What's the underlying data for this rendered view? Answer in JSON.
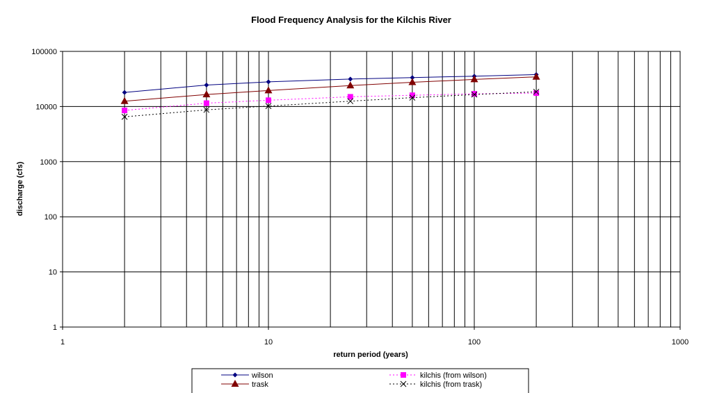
{
  "chart_data": {
    "type": "line",
    "title": "Flood Frequency Analysis for the Kilchis River",
    "xlabel": "return period (years)",
    "ylabel": "discharge (cfs)",
    "xscale": "log",
    "yscale": "log",
    "xlim": [
      1,
      1000
    ],
    "ylim": [
      1,
      100000
    ],
    "x_ticks": [
      "1",
      "10",
      "100",
      "1000"
    ],
    "y_ticks": [
      "1",
      "10",
      "100",
      "1000",
      "10000",
      "100000"
    ],
    "grid": "on",
    "legend_position": "bottom",
    "x": [
      2,
      5,
      10,
      25,
      50,
      100,
      200
    ],
    "series": [
      {
        "name": "wilson",
        "color": "#000080",
        "line": "solid",
        "marker": "diamond",
        "values": [
          18000,
          24500,
          28000,
          31500,
          33500,
          35500,
          38000
        ]
      },
      {
        "name": "trask",
        "color": "#800000",
        "line": "solid",
        "marker": "triangle",
        "values": [
          12500,
          16500,
          19500,
          24000,
          27500,
          31000,
          34500
        ]
      },
      {
        "name": "kilchis (from wilson)",
        "color": "#ff00ff",
        "line": "dotted",
        "marker": "square",
        "values": [
          8500,
          11500,
          13000,
          15000,
          16000,
          17000,
          17500
        ]
      },
      {
        "name": "kilchis (from trask)",
        "color": "#000000",
        "line": "dotted",
        "marker": "x",
        "values": [
          6500,
          8700,
          10200,
          12500,
          14500,
          16500,
          18500
        ]
      }
    ]
  }
}
